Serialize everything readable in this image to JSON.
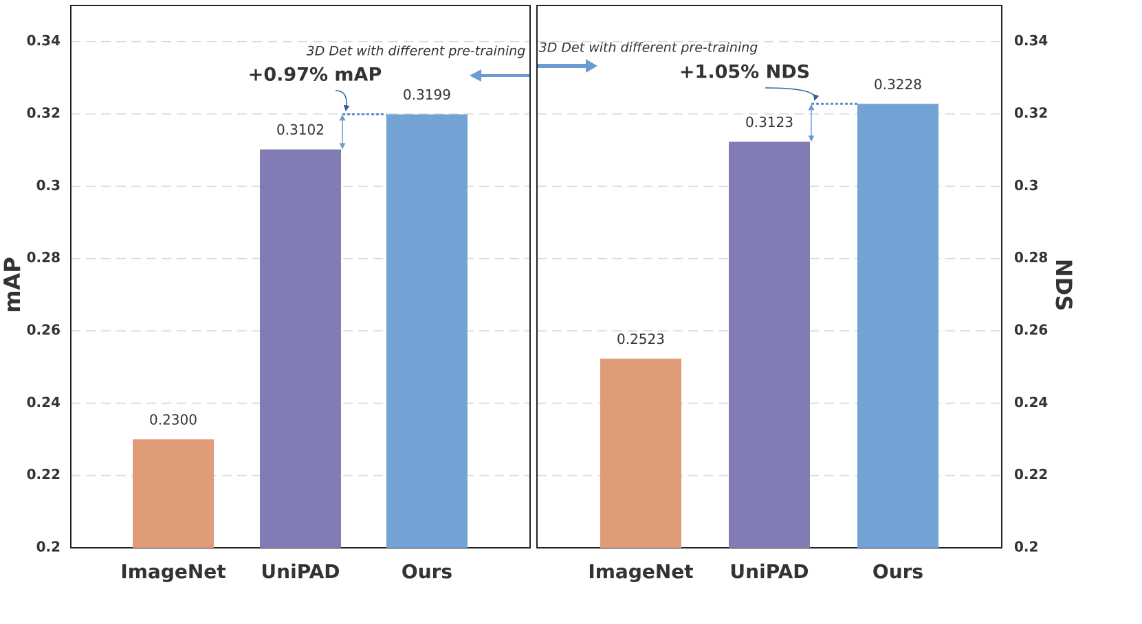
{
  "chart_data": [
    {
      "type": "bar",
      "y_label": "mAP",
      "y_axis_position": "left",
      "categories": [
        "ImageNet",
        "UniPAD",
        "Ours"
      ],
      "values": [
        0.23,
        0.3102,
        0.3199
      ],
      "value_labels": [
        "0.2300",
        "0.3102",
        "0.3199"
      ],
      "colors": [
        "#e09b78",
        "#827cb5",
        "#72a3d4"
      ],
      "ylim": [
        0.2,
        0.35
      ],
      "yticks": [
        0.2,
        0.22,
        0.24,
        0.26,
        0.28,
        0.3,
        0.32,
        0.34
      ],
      "grid": true,
      "annotations": [
        "3D Det with different pre-training",
        "+0.97% mAP"
      ]
    },
    {
      "type": "bar",
      "y_label": "NDS",
      "y_axis_position": "right",
      "categories": [
        "ImageNet",
        "UniPAD",
        "Ours"
      ],
      "values": [
        0.2523,
        0.3123,
        0.3228
      ],
      "value_labels": [
        "0.2523",
        "0.3123",
        "0.3228"
      ],
      "colors": [
        "#e09b78",
        "#827cb5",
        "#72a3d4"
      ],
      "ylim": [
        0.2,
        0.35
      ],
      "yticks": [
        0.2,
        0.22,
        0.24,
        0.26,
        0.28,
        0.3,
        0.32,
        0.34
      ],
      "grid": true,
      "annotations": [
        "3D Det with different pre-training",
        "+1.05% NDS"
      ]
    }
  ]
}
